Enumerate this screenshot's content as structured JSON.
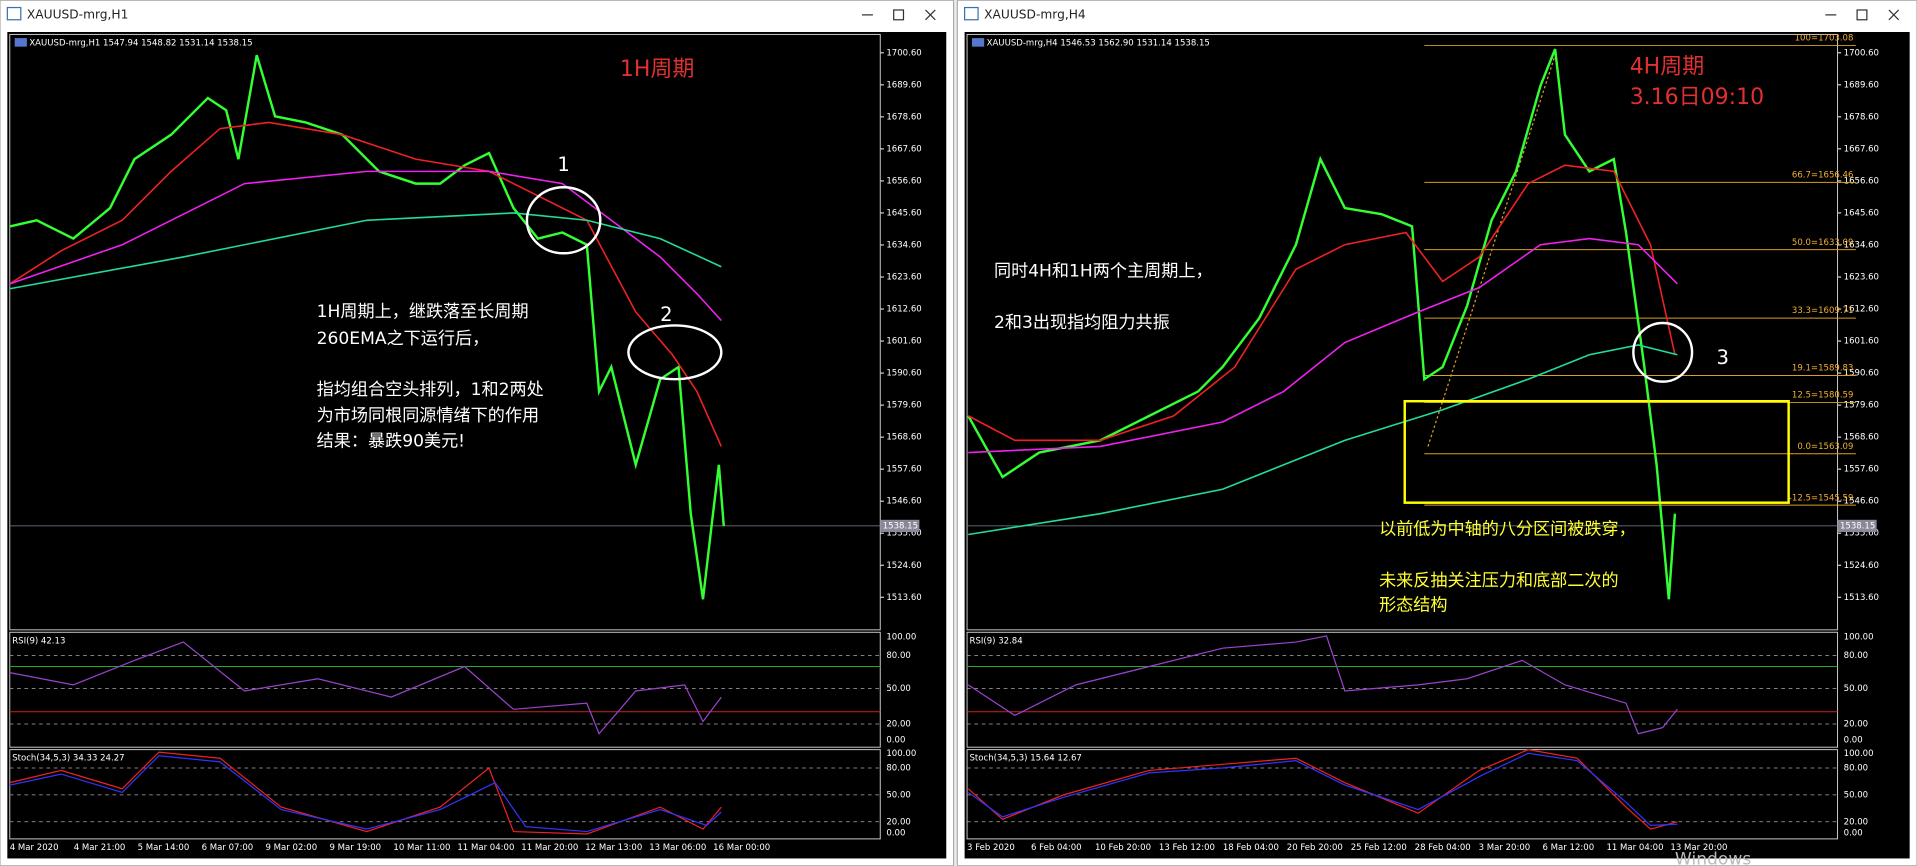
{
  "windows": [
    {
      "title": "XAUUSD-mrg,H1",
      "header": "XAUUSD-mrg,H1  1547.94 1548.82 1531.14 1538.15",
      "current_price": "1538.15",
      "price_labels": [
        "1700.60",
        "1689.60",
        "1678.60",
        "1667.60",
        "1656.60",
        "1645.60",
        "1634.60",
        "1623.60",
        "1612.60",
        "1601.60",
        "1590.60",
        "1579.60",
        "1568.60",
        "1557.60",
        "1546.60",
        "1535.60",
        "1524.60",
        "1513.60"
      ],
      "rsi_header": "RSI(9) 42.13",
      "rsi_labels": [
        "100.00",
        "80.00",
        "50.00",
        "20.00",
        "0.00"
      ],
      "stoch_header": "Stoch(34,5,3) 34.33 24.27",
      "stoch_labels": [
        "100.00",
        "80.00",
        "50.00",
        "20.00",
        "0.00"
      ],
      "dates": [
        "4 Mar 2020",
        "4 Mar 21:00",
        "5 Mar 14:00",
        "6 Mar 07:00",
        "9 Mar 02:00",
        "9 Mar 19:00",
        "10 Mar 11:00",
        "11 Mar 04:00",
        "11 Mar 20:00",
        "12 Mar 13:00",
        "13 Mar 06:00",
        "16 Mar 00:00"
      ],
      "period_label": "1H周期",
      "markers": [
        "1",
        "2"
      ],
      "notes": [
        "1H周期上，继跌落至长周期",
        "260EMA之下运行后，",
        "指均组合空头排列，1和2两处",
        "为市场同根同源情绪下的作用",
        "结果：暴跌90美元!"
      ]
    },
    {
      "title": "XAUUSD-mrg,H4",
      "header": "XAUUSD-mrg,H4  1546.53 1562.90 1531.14 1538.15",
      "current_price": "1538.15",
      "price_labels": [
        "1700.60",
        "1689.60",
        "1678.60",
        "1667.60",
        "1656.60",
        "1645.60",
        "1634.60",
        "1623.60",
        "1612.60",
        "1601.60",
        "1590.60",
        "1579.60",
        "1568.60",
        "1557.60",
        "1546.60",
        "1535.60",
        "1524.60",
        "1513.60"
      ],
      "rsi_header": "RSI(9) 32.84",
      "rsi_labels": [
        "100.00",
        "80.00",
        "50.00",
        "20.00",
        "0.00"
      ],
      "stoch_header": "Stoch(34,5,3) 15.64 12.67",
      "stoch_labels": [
        "100.00",
        "80.00",
        "50.00",
        "20.00",
        "0.00"
      ],
      "dates": [
        "3 Feb 2020",
        "6 Feb 04:00",
        "10 Feb 20:00",
        "13 Feb 12:00",
        "18 Feb 04:00",
        "20 Feb 20:00",
        "25 Feb 12:00",
        "28 Feb 04:00",
        "3 Mar 20:00",
        "6 Mar 12:00",
        "11 Mar 04:00",
        "13 Mar 20:00"
      ],
      "period_label": "4H周期",
      "time_label": "3.16日09:10",
      "markers": [
        "3"
      ],
      "fib_labels": [
        "100=1703.08",
        "66.7=1656.46",
        "50.0=1633.09",
        "33.3=1609.71",
        "19.1=1589.83",
        "12.5=1580.59",
        "0.0=1563.09",
        "-12.5=1545.59"
      ],
      "notes": [
        "同时4H和1H两个主周期上，",
        "2和3出现指均阻力共振"
      ],
      "yellow_notes": [
        "以前低为中轴的八分区间被跌穿，",
        "未来反抽关注压力和底部二次的",
        "形态结构"
      ]
    }
  ],
  "watermark": "Windows"
}
